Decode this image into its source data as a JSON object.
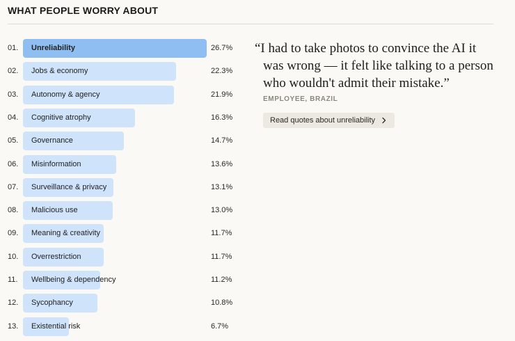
{
  "heading": "WHAT PEOPLE WORRY ABOUT",
  "quote": {
    "lines": [
      "“I had to take photos to convince the AI it",
      "was wrong — it felt like talking to a person",
      "who wouldn't admit their mistake.”"
    ],
    "attribution": "EMPLOYEE, BRAZIL",
    "button_label": "Read quotes about unreliability",
    "button_icon": "chevron-right-icon"
  },
  "colors": {
    "bar": "#cfe3fb",
    "bar_active": "#8fbff2",
    "background": "#faf9f5"
  },
  "chart_data": {
    "type": "bar",
    "orientation": "horizontal",
    "title": "WHAT PEOPLE WORRY ABOUT",
    "unit": "%",
    "xlim": [
      0,
      26.7
    ],
    "grid": false,
    "highlighted_index": 0,
    "ranks": [
      "01.",
      "02.",
      "03.",
      "04.",
      "05.",
      "06.",
      "07.",
      "08.",
      "09.",
      "10.",
      "11.",
      "12.",
      "13."
    ],
    "categories": [
      "Unreliability",
      "Jobs & economy",
      "Autonomy & agency",
      "Cognitive atrophy",
      "Governance",
      "Misinformation",
      "Surveillance & privacy",
      "Malicious use",
      "Meaning & creativity",
      "Overrestriction",
      "Wellbeing & dependency",
      "Sycophancy",
      "Existential risk"
    ],
    "values": [
      26.7,
      22.3,
      21.9,
      16.3,
      14.7,
      13.6,
      13.1,
      13.0,
      11.7,
      11.7,
      11.2,
      10.8,
      6.7
    ],
    "value_labels": [
      "26.7%",
      "22.3%",
      "21.9%",
      "16.3%",
      "14.7%",
      "13.6%",
      "13.1%",
      "13.0%",
      "11.7%",
      "11.7%",
      "11.2%",
      "10.8%",
      "6.7%"
    ]
  }
}
